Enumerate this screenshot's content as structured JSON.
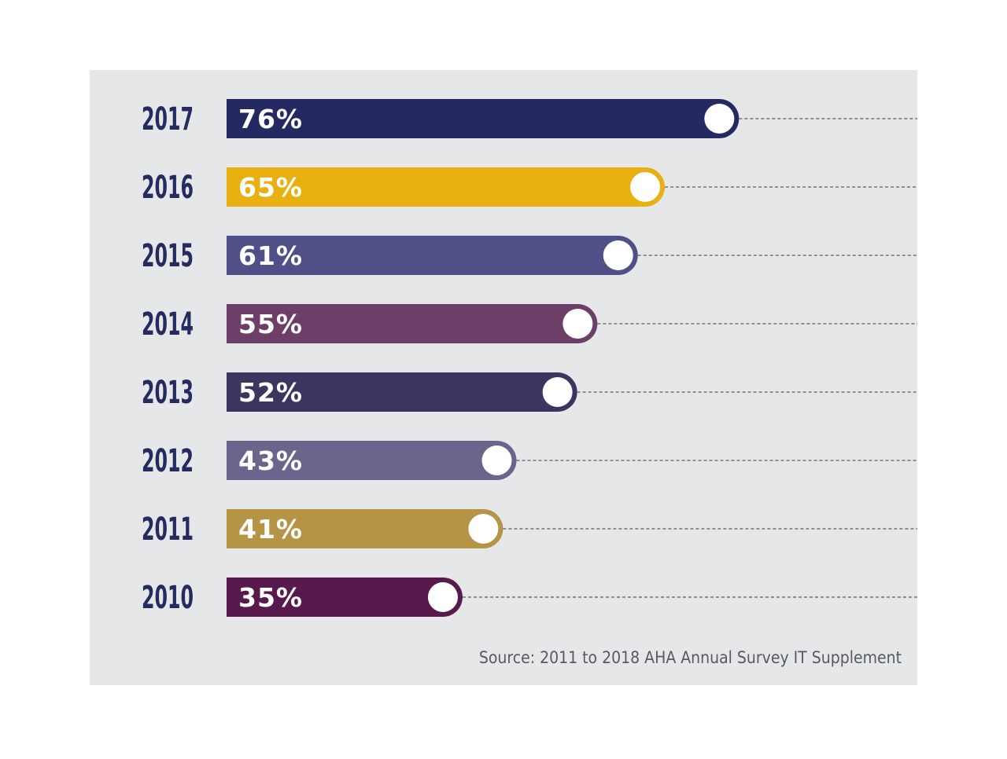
{
  "chart_data": {
    "type": "bar",
    "orientation": "horizontal",
    "categories": [
      "2017",
      "2016",
      "2015",
      "2014",
      "2013",
      "2012",
      "2011",
      "2010"
    ],
    "values": [
      76,
      65,
      61,
      55,
      52,
      43,
      41,
      35
    ],
    "value_labels": [
      "76%",
      "65%",
      "61%",
      "55%",
      "52%",
      "43%",
      "41%",
      "35%"
    ],
    "colors": [
      "#252962",
      "#e8b011",
      "#4f5088",
      "#6d3e68",
      "#3b3660",
      "#6b648c",
      "#b69445",
      "#581a4c"
    ],
    "grid": false,
    "legend": "none"
  },
  "source_text": "Source: 2011 to 2018 AHA Annual Survey IT Supplement"
}
